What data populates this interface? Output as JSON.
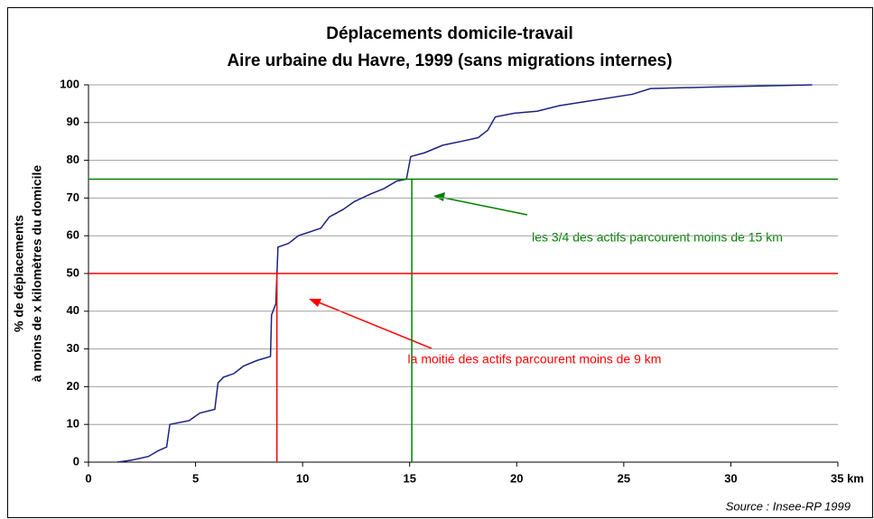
{
  "chart_data": {
    "type": "line",
    "title": [
      "Déplacements domicile-travail",
      "Aire urbaine du Havre, 1999 (sans migrations internes)"
    ],
    "ylabel": [
      "% de déplacements",
      "à moins de x kilomètres du domicile"
    ],
    "source": "Source : Insee-RP 1999",
    "xlim": [
      0,
      35
    ],
    "xticks": [
      0,
      5,
      10,
      15,
      20,
      25,
      30,
      {
        "value": 35,
        "label": "35 km"
      }
    ],
    "ylim": [
      0,
      100
    ],
    "yticks": [
      0,
      10,
      20,
      30,
      40,
      50,
      60,
      70,
      80,
      90,
      100
    ],
    "grid": true,
    "series": [
      {
        "color": "#1a237e",
        "x": [
          1.35,
          2.0,
          2.8,
          3.25,
          3.65,
          3.8,
          4.7,
          5.2,
          5.9,
          6.05,
          6.3,
          6.8,
          7.25,
          7.9,
          8.5,
          8.55,
          8.75,
          8.85,
          9.35,
          9.8,
          10.85,
          11.25,
          11.9,
          12.4,
          13.15,
          13.8,
          14.4,
          14.85,
          15.05,
          15.7,
          16.55,
          17.4,
          18.2,
          18.65,
          19.0,
          19.9,
          20.95,
          22.0,
          23.7,
          25.4,
          26.25,
          29.6,
          33.8
        ],
        "values": [
          0,
          0.5,
          1.5,
          3,
          4,
          10,
          11,
          13,
          14,
          21,
          22.5,
          23.5,
          25.5,
          27,
          28,
          39,
          42,
          57,
          58,
          60,
          62,
          65,
          67,
          69,
          71,
          72.5,
          74.5,
          75,
          81,
          82,
          84,
          85,
          86,
          88,
          91.5,
          92.5,
          93,
          94.5,
          96,
          97.5,
          99,
          99.5,
          100
        ]
      }
    ],
    "reference_lines": [
      {
        "y": 75,
        "x": 15.1,
        "color": "#008000"
      },
      {
        "y": 50,
        "x": 8.8,
        "color": "#ff0000"
      }
    ],
    "annotations": [
      {
        "text": "les 3/4 des actifs parcourent moins de 15 km",
        "color": "#008000"
      },
      {
        "text": "la moitié des actifs parcourent moins de 9 km",
        "color": "#ff0000"
      }
    ]
  }
}
